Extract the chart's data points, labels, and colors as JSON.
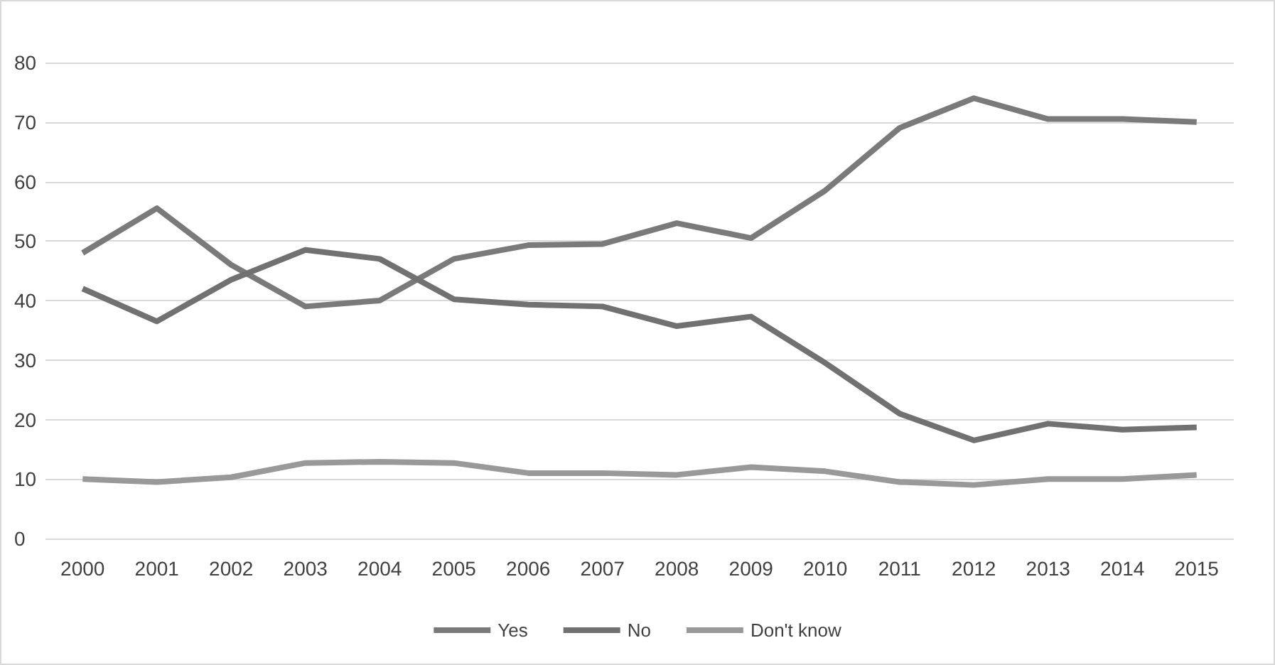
{
  "chart_data": {
    "type": "line",
    "categories": [
      "2000",
      "2001",
      "2002",
      "2003",
      "2004",
      "2005",
      "2006",
      "2007",
      "2008",
      "2009",
      "2010",
      "2011",
      "2012",
      "2013",
      "2014",
      "2015"
    ],
    "series": [
      {
        "name": "Yes",
        "color": "#7a7a7a",
        "values": [
          48,
          55.5,
          46,
          39,
          40,
          47,
          49.3,
          49.5,
          53,
          50.5,
          58.5,
          69,
          74,
          70.5,
          70.5,
          70
        ]
      },
      {
        "name": "No",
        "color": "#717171",
        "values": [
          42,
          36.5,
          43.5,
          48.5,
          47,
          40.2,
          39.3,
          39,
          35.7,
          37.3,
          29.5,
          21,
          16.5,
          19.3,
          18.3,
          18.7
        ]
      },
      {
        "name": "Don't know",
        "color": "#999999",
        "values": [
          10,
          9.5,
          10.3,
          12.7,
          12.9,
          12.7,
          11,
          11,
          10.7,
          12,
          11.3,
          9.5,
          9,
          10,
          10,
          10.7
        ]
      }
    ],
    "ylim": [
      0,
      80
    ],
    "yticks": [
      0,
      10,
      20,
      30,
      40,
      50,
      60,
      70,
      80
    ],
    "grid": "y",
    "legend": "bottom",
    "marker": "none",
    "line_style": "solid"
  }
}
